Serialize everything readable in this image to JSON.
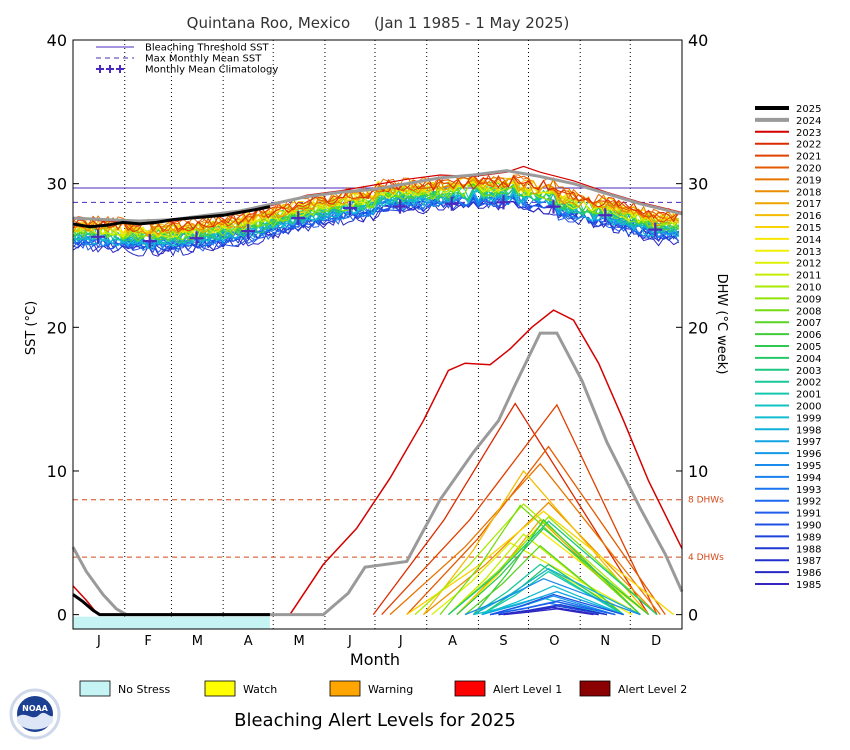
{
  "chart_data": {
    "type": "line",
    "title": "Quintana Roo, Mexico     (Jan 1 1985 - 1 May 2025)",
    "xlabel": "Month",
    "ylabel_left": "SST (°C)",
    "ylabel_right": "DHW (°C week)",
    "months": [
      "J",
      "F",
      "M",
      "A",
      "M",
      "J",
      "J",
      "A",
      "S",
      "O",
      "N",
      "D"
    ],
    "y_ticks": [
      0,
      10,
      20,
      30,
      40
    ],
    "ylim": [
      -1,
      40
    ],
    "xlim": [
      0,
      365
    ],
    "grid": "dotted vertical month lines",
    "legend_top": {
      "placement": "top-left",
      "items": [
        {
          "label": "Bleaching Threshold SST",
          "style": "solid",
          "color": "#4b2bbf"
        },
        {
          "label": "Max Monthly Mean SST",
          "style": "dashed",
          "color": "#4b2bbf"
        },
        {
          "label": "Monthly Mean Climatology",
          "style": "plus",
          "color": "#4b2bbf"
        }
      ]
    },
    "bleaching_threshold_sst": 29.7,
    "max_monthly_mean_sst": 28.7,
    "dhw_reference_lines": [
      {
        "value": 8,
        "label": "8 DHWs",
        "color": "#d24a1a"
      },
      {
        "value": 4,
        "label": "4 DHWs",
        "color": "#d24a1a"
      }
    ],
    "climatology": [
      {
        "day": 15,
        "sst": 26.3
      },
      {
        "day": 46,
        "sst": 26.0
      },
      {
        "day": 74,
        "sst": 26.2
      },
      {
        "day": 105,
        "sst": 26.7
      },
      {
        "day": 135,
        "sst": 27.6
      },
      {
        "day": 166,
        "sst": 28.3
      },
      {
        "day": 196,
        "sst": 28.4
      },
      {
        "day": 227,
        "sst": 28.6
      },
      {
        "day": 258,
        "sst": 28.7
      },
      {
        "day": 288,
        "sst": 28.4
      },
      {
        "day": 319,
        "sst": 27.8
      },
      {
        "day": 349,
        "sst": 26.8
      }
    ],
    "years": [
      "2025",
      "2024",
      "2023",
      "2022",
      "2021",
      "2020",
      "2019",
      "2018",
      "2017",
      "2016",
      "2015",
      "2014",
      "2013",
      "2012",
      "2011",
      "2010",
      "2009",
      "2008",
      "2007",
      "2006",
      "2005",
      "2004",
      "2003",
      "2002",
      "2001",
      "2000",
      "1999",
      "1998",
      "1997",
      "1996",
      "1995",
      "1994",
      "1993",
      "1992",
      "1991",
      "1990",
      "1989",
      "1988",
      "1987",
      "1986",
      "1985"
    ],
    "year_colors": [
      "#000000",
      "#9a9a9a",
      "#d40000",
      "#dc2a00",
      "#e04000",
      "#e45a00",
      "#e87400",
      "#ec8c00",
      "#f0a400",
      "#f4bc00",
      "#f8d400",
      "#fae800",
      "#f0f000",
      "#dcf000",
      "#c4ee00",
      "#aaea00",
      "#90e400",
      "#74dc10",
      "#58d424",
      "#40cc38",
      "#30c850",
      "#24c868",
      "#1cc880",
      "#18c898",
      "#14c8ae",
      "#10c4c4",
      "#10bcd0",
      "#10b0dc",
      "#10a4e4",
      "#1498e8",
      "#188cec",
      "#1a80ee",
      "#1c74f0",
      "#1e68f0",
      "#1e5cec",
      "#1e50e4",
      "#1e44dc",
      "#1e38d4",
      "#2030cc",
      "#2828c4",
      "#3424c0"
    ],
    "sst_2025": [
      [
        0,
        27.2
      ],
      [
        10,
        27.0
      ],
      [
        20,
        27.1
      ],
      [
        30,
        27.3
      ],
      [
        40,
        27.2
      ],
      [
        50,
        27.3
      ],
      [
        60,
        27.5
      ],
      [
        70,
        27.6
      ],
      [
        80,
        27.7
      ],
      [
        90,
        27.8
      ],
      [
        100,
        28.0
      ],
      [
        110,
        28.2
      ],
      [
        118,
        28.4
      ]
    ],
    "sst_2024": [
      [
        0,
        27.6
      ],
      [
        20,
        27.5
      ],
      [
        40,
        27.4
      ],
      [
        60,
        27.5
      ],
      [
        80,
        27.8
      ],
      [
        100,
        28.1
      ],
      [
        120,
        28.6
      ],
      [
        140,
        29.1
      ],
      [
        160,
        29.4
      ],
      [
        180,
        29.6
      ],
      [
        200,
        30.0
      ],
      [
        220,
        30.4
      ],
      [
        240,
        30.6
      ],
      [
        260,
        30.9
      ],
      [
        280,
        30.5
      ],
      [
        300,
        30.0
      ],
      [
        320,
        29.3
      ],
      [
        340,
        28.6
      ],
      [
        365,
        27.9
      ]
    ],
    "sst_2023": [
      [
        0,
        27.6
      ],
      [
        20,
        27.4
      ],
      [
        40,
        27.3
      ],
      [
        60,
        27.4
      ],
      [
        80,
        27.7
      ],
      [
        100,
        28.0
      ],
      [
        120,
        28.5
      ],
      [
        140,
        29.2
      ],
      [
        160,
        29.5
      ],
      [
        180,
        29.9
      ],
      [
        200,
        30.3
      ],
      [
        220,
        30.6
      ],
      [
        240,
        30.5
      ],
      [
        260,
        30.8
      ],
      [
        270,
        31.2
      ],
      [
        280,
        30.8
      ],
      [
        300,
        30.2
      ],
      [
        320,
        29.4
      ],
      [
        340,
        28.7
      ],
      [
        365,
        28.0
      ]
    ],
    "dhw_2025": [
      [
        0,
        1.4
      ],
      [
        6,
        0.9
      ],
      [
        12,
        0.3
      ],
      [
        16,
        0
      ],
      [
        118,
        0
      ]
    ],
    "dhw_2024": [
      [
        0,
        4.7
      ],
      [
        8,
        3.0
      ],
      [
        18,
        1.4
      ],
      [
        26,
        0.4
      ],
      [
        32,
        0
      ],
      [
        150,
        0
      ],
      [
        165,
        1.5
      ],
      [
        175,
        3.3
      ],
      [
        200,
        3.7
      ],
      [
        220,
        8.0
      ],
      [
        240,
        11.3
      ],
      [
        255,
        13.5
      ],
      [
        265,
        16.0
      ],
      [
        280,
        19.6
      ],
      [
        290,
        19.6
      ],
      [
        305,
        16.3
      ],
      [
        320,
        12.0
      ],
      [
        340,
        7.4
      ],
      [
        355,
        4.2
      ],
      [
        365,
        1.6
      ]
    ],
    "dhw_2023": [
      [
        0,
        2.0
      ],
      [
        8,
        1.0
      ],
      [
        15,
        0
      ],
      [
        130,
        0
      ],
      [
        150,
        3.5
      ],
      [
        170,
        6.0
      ],
      [
        190,
        9.5
      ],
      [
        210,
        13.5
      ],
      [
        225,
        17.0
      ],
      [
        235,
        17.5
      ],
      [
        250,
        17.4
      ],
      [
        262,
        18.5
      ],
      [
        275,
        20.0
      ],
      [
        288,
        21.2
      ],
      [
        300,
        20.5
      ],
      [
        315,
        17.5
      ],
      [
        330,
        13.5
      ],
      [
        345,
        9.3
      ],
      [
        365,
        4.6
      ]
    ],
    "dhw_peaks": [
      {
        "year": "2022",
        "start": 180,
        "peak_day": 265,
        "peak": 14.7,
        "end": 345
      },
      {
        "year": "2021",
        "start": 185,
        "peak_day": 290,
        "peak": 14.6,
        "end": 350
      },
      {
        "year": "2020",
        "start": 200,
        "peak_day": 285,
        "peak": 11.7,
        "end": 355
      },
      {
        "year": "2019",
        "start": 190,
        "peak_day": 280,
        "peak": 10.5,
        "end": 352
      },
      {
        "year": "2018",
        "start": 210,
        "peak_day": 285,
        "peak": 7.8,
        "end": 350
      },
      {
        "year": "2017",
        "start": 230,
        "peak_day": 280,
        "peak": 6.6,
        "end": 340
      },
      {
        "year": "2016",
        "start": 210,
        "peak_day": 270,
        "peak": 10.0,
        "end": 345
      },
      {
        "year": "2015",
        "start": 200,
        "peak_day": 282,
        "peak": 7.2,
        "end": 360
      },
      {
        "year": "2014",
        "start": 230,
        "peak_day": 278,
        "peak": 6.0,
        "end": 345
      },
      {
        "year": "2013",
        "start": 240,
        "peak_day": 285,
        "peak": 3.2,
        "end": 335
      },
      {
        "year": "2012",
        "start": 215,
        "peak_day": 262,
        "peak": 5.0,
        "end": 340
      },
      {
        "year": "2011",
        "start": 225,
        "peak_day": 270,
        "peak": 5.6,
        "end": 330
      },
      {
        "year": "2010",
        "start": 205,
        "peak_day": 270,
        "peak": 7.7,
        "end": 345
      },
      {
        "year": "2009",
        "start": 225,
        "peak_day": 285,
        "peak": 6.8,
        "end": 350
      },
      {
        "year": "2008",
        "start": 220,
        "peak_day": 268,
        "peak": 7.6,
        "end": 340
      },
      {
        "year": "2007",
        "start": 235,
        "peak_day": 280,
        "peak": 4.8,
        "end": 330
      },
      {
        "year": "2006",
        "start": 240,
        "peak_day": 282,
        "peak": 6.6,
        "end": 340
      },
      {
        "year": "2005",
        "start": 230,
        "peak_day": 282,
        "peak": 6.0,
        "end": 345
      },
      {
        "year": "2004",
        "start": 245,
        "peak_day": 285,
        "peak": 3.5,
        "end": 330
      },
      {
        "year": "2003",
        "start": 225,
        "peak_day": 285,
        "peak": 6.5,
        "end": 350
      },
      {
        "year": "2002",
        "start": 240,
        "peak_day": 280,
        "peak": 3.5,
        "end": 330
      },
      {
        "year": "2001",
        "start": 245,
        "peak_day": 285,
        "peak": 3.0,
        "end": 330
      },
      {
        "year": "2000",
        "start": 240,
        "peak_day": 280,
        "peak": 1.2,
        "end": 320
      },
      {
        "year": "1999",
        "start": 245,
        "peak_day": 288,
        "peak": 2.0,
        "end": 330
      },
      {
        "year": "1998",
        "start": 240,
        "peak_day": 285,
        "peak": 3.2,
        "end": 340
      },
      {
        "year": "1997",
        "start": 245,
        "peak_day": 290,
        "peak": 1.6,
        "end": 330
      },
      {
        "year": "1996",
        "start": 250,
        "peak_day": 288,
        "peak": 1.3,
        "end": 325
      },
      {
        "year": "1995",
        "start": 235,
        "peak_day": 282,
        "peak": 2.5,
        "end": 340
      },
      {
        "year": "1994",
        "start": 250,
        "peak_day": 285,
        "peak": 0.8,
        "end": 320
      },
      {
        "year": "1993",
        "start": 250,
        "peak_day": 292,
        "peak": 1.0,
        "end": 325
      },
      {
        "year": "1992",
        "start": 255,
        "peak_day": 288,
        "peak": 0.5,
        "end": 315
      },
      {
        "year": "1991",
        "start": 250,
        "peak_day": 290,
        "peak": 0.9,
        "end": 325
      },
      {
        "year": "1990",
        "start": 250,
        "peak_day": 288,
        "peak": 1.4,
        "end": 330
      },
      {
        "year": "1989",
        "start": 255,
        "peak_day": 290,
        "peak": 0.6,
        "end": 320
      },
      {
        "year": "1988",
        "start": 255,
        "peak_day": 288,
        "peak": 0.5,
        "end": 315
      },
      {
        "year": "1987",
        "start": 255,
        "peak_day": 292,
        "peak": 0.7,
        "end": 320
      },
      {
        "year": "1986",
        "start": 258,
        "peak_day": 290,
        "peak": 0.4,
        "end": 312
      },
      {
        "year": "1985",
        "start": 258,
        "peak_day": 288,
        "peak": 0.5,
        "end": 315
      }
    ],
    "bottom_legend": {
      "title": "Bleaching Alert Levels for 2025",
      "items": [
        {
          "label": "No Stress",
          "color": "#c6f4f4"
        },
        {
          "label": "Watch",
          "color": "#ffff00"
        },
        {
          "label": "Warning",
          "color": "#ffa500"
        },
        {
          "label": "Alert Level 1",
          "color": "#ff0000"
        },
        {
          "label": "Alert Level 2",
          "color": "#8b0000"
        }
      ]
    },
    "alert_bar_2025": [
      {
        "start": 0,
        "end": 118,
        "level": "No Stress"
      }
    ]
  },
  "logo_text": "NOAA"
}
